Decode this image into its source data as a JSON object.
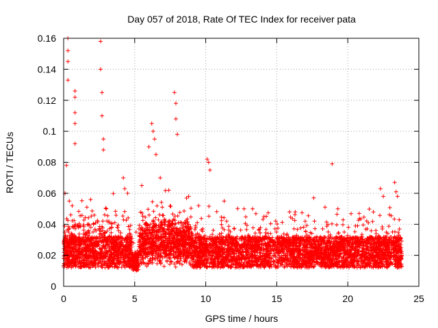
{
  "chart_data": {
    "type": "scatter",
    "title": "Day 057 of 2018, Rate Of TEC Index for receiver pata",
    "xlabel": "GPS time / hours",
    "ylabel": "ROTI / TECUs",
    "xlim": [
      0,
      25
    ],
    "ylim": [
      0,
      0.16
    ],
    "xticks": [
      0,
      5,
      10,
      15,
      20,
      25
    ],
    "yticks": [
      0,
      0.02,
      0.04,
      0.06,
      0.08,
      0.1,
      0.12,
      0.14,
      0.16
    ],
    "xtick_labels": [
      "0",
      "5",
      "10",
      "15",
      "20",
      "25"
    ],
    "ytick_labels": [
      "0",
      "0.02",
      "0.04",
      "0.06",
      "0.08",
      "0.1",
      "0.12",
      "0.14",
      "0.16"
    ],
    "grid": true,
    "marker": "+",
    "marker_color": "#ff0000",
    "series": [
      {
        "name": "ROTI",
        "color": "#ff0000",
        "x": [
          0.0,
          0.1,
          0.2,
          0.3,
          0.4,
          0.5,
          0.6,
          0.7,
          0.8,
          0.9,
          1.0,
          1.2,
          1.4,
          1.6,
          1.8,
          2.0,
          2.2,
          2.4,
          2.6,
          2.8,
          3.0,
          3.2,
          3.4,
          3.6,
          3.8,
          4.0,
          4.2,
          4.4,
          4.6,
          4.8,
          5.0,
          5.2,
          5.4,
          5.6,
          5.8,
          6.0,
          6.2,
          6.4,
          6.6,
          6.8,
          7.0,
          7.2,
          7.4,
          7.6,
          7.8,
          8.0,
          8.2,
          8.4,
          8.6,
          8.8,
          9.0,
          9.2,
          9.4,
          9.6,
          9.8,
          10.0,
          10.2,
          10.4,
          10.6,
          10.8,
          11.0,
          11.5,
          12.0,
          12.5,
          13.0,
          13.5,
          14.0,
          14.5,
          15.0,
          15.5,
          16.0,
          16.5,
          17.0,
          17.5,
          18.0,
          18.5,
          19.0,
          19.5,
          20.0,
          20.5,
          21.0,
          21.5,
          22.0,
          22.5,
          23.0,
          23.5,
          23.8,
          0.05,
          0.15,
          0.25,
          0.35,
          0.45,
          0.55,
          0.65,
          0.75,
          0.85,
          0.95,
          1.1,
          1.3,
          1.5,
          1.7,
          1.9,
          2.1,
          2.3,
          2.5,
          2.7,
          2.9,
          3.1,
          3.3,
          3.5,
          3.7,
          3.9,
          4.1,
          4.3,
          4.5,
          4.7,
          4.9,
          5.1,
          5.3,
          5.5,
          5.7,
          5.9,
          6.1,
          6.3,
          6.5,
          6.7,
          6.9,
          7.1,
          7.3,
          7.5,
          7.7,
          7.9,
          8.1,
          8.3,
          8.5,
          8.7,
          8.9,
          9.1,
          9.3,
          9.5,
          9.7,
          9.9,
          10.1,
          10.3,
          10.5,
          10.7,
          10.9,
          11.2,
          11.7,
          12.2,
          12.7,
          13.2,
          13.7,
          14.2,
          14.7,
          15.2,
          15.7,
          16.2,
          16.7,
          17.2,
          17.7,
          18.2,
          18.7,
          19.2,
          19.7,
          20.2,
          20.7,
          21.2,
          21.7,
          22.2,
          22.7,
          23.2,
          23.6,
          0.2,
          0.3,
          0.3,
          0.3,
          0.3,
          0.8,
          0.8,
          0.8,
          0.8,
          0.8,
          2.6,
          2.6,
          2.7,
          2.7,
          2.8,
          2.8,
          4.2,
          4.3,
          6.0,
          6.2,
          6.3,
          6.4,
          6.5,
          7.8,
          7.9,
          7.9,
          8.0,
          10.1,
          10.2,
          10.3,
          12.7,
          14.1,
          15.9,
          17.0,
          17.6,
          18.4,
          18.9,
          22.3,
          22.5,
          23.3,
          23.4,
          23.5,
          0.1,
          0.4,
          0.6,
          1.9,
          3.0,
          4.5,
          5.5,
          6.8,
          7.4,
          8.8,
          9.5,
          11.3,
          13.3,
          16.3,
          19.3,
          20.8,
          21.8
        ],
        "y": [
          0.018,
          0.022,
          0.02,
          0.025,
          0.019,
          0.021,
          0.024,
          0.02,
          0.026,
          0.022,
          0.019,
          0.021,
          0.02,
          0.023,
          0.02,
          0.022,
          0.019,
          0.021,
          0.024,
          0.02,
          0.022,
          0.019,
          0.021,
          0.02,
          0.023,
          0.021,
          0.02,
          0.022,
          0.018,
          0.019,
          0.02,
          0.023,
          0.025,
          0.026,
          0.024,
          0.027,
          0.028,
          0.026,
          0.025,
          0.027,
          0.029,
          0.026,
          0.028,
          0.025,
          0.027,
          0.026,
          0.024,
          0.023,
          0.025,
          0.022,
          0.021,
          0.023,
          0.022,
          0.02,
          0.021,
          0.022,
          0.021,
          0.02,
          0.022,
          0.021,
          0.02,
          0.019,
          0.021,
          0.02,
          0.022,
          0.02,
          0.019,
          0.021,
          0.022,
          0.02,
          0.021,
          0.022,
          0.02,
          0.021,
          0.02,
          0.019,
          0.02,
          0.021,
          0.02,
          0.019,
          0.02,
          0.021,
          0.022,
          0.02,
          0.021,
          0.022,
          0.02,
          0.03,
          0.032,
          0.028,
          0.035,
          0.03,
          0.034,
          0.031,
          0.033,
          0.029,
          0.03,
          0.028,
          0.031,
          0.027,
          0.029,
          0.03,
          0.031,
          0.028,
          0.029,
          0.033,
          0.03,
          0.028,
          0.029,
          0.031,
          0.03,
          0.032,
          0.031,
          0.03,
          0.029,
          0.027,
          0.028,
          0.035,
          0.037,
          0.038,
          0.036,
          0.039,
          0.04,
          0.042,
          0.038,
          0.039,
          0.041,
          0.04,
          0.037,
          0.039,
          0.036,
          0.035,
          0.034,
          0.032,
          0.033,
          0.031,
          0.03,
          0.031,
          0.03,
          0.032,
          0.031,
          0.03,
          0.031,
          0.032,
          0.03,
          0.029,
          0.028,
          0.03,
          0.031,
          0.032,
          0.03,
          0.029,
          0.03,
          0.028,
          0.03,
          0.031,
          0.029,
          0.03,
          0.031,
          0.03,
          0.029,
          0.03,
          0.031,
          0.029,
          0.028,
          0.03,
          0.031,
          0.03,
          0.029,
          0.032,
          0.03,
          0.031,
          0.033,
          0.078,
          0.16,
          0.152,
          0.145,
          0.133,
          0.126,
          0.122,
          0.112,
          0.105,
          0.092,
          0.158,
          0.14,
          0.125,
          0.11,
          0.095,
          0.088,
          0.07,
          0.063,
          0.09,
          0.105,
          0.1,
          0.095,
          0.085,
          0.125,
          0.118,
          0.108,
          0.098,
          0.082,
          0.08,
          0.075,
          0.05,
          0.045,
          0.048,
          0.042,
          0.057,
          0.051,
          0.079,
          0.063,
          0.058,
          0.067,
          0.061,
          0.058,
          0.06,
          0.055,
          0.052,
          0.056,
          0.05,
          0.06,
          0.065,
          0.07,
          0.062,
          0.058,
          0.052,
          0.055,
          0.05,
          0.048,
          0.05,
          0.047,
          0.048
        ],
        "y_estimated_baseline": "dense band roughly 0.01 to 0.03 throughout the day"
      }
    ]
  }
}
